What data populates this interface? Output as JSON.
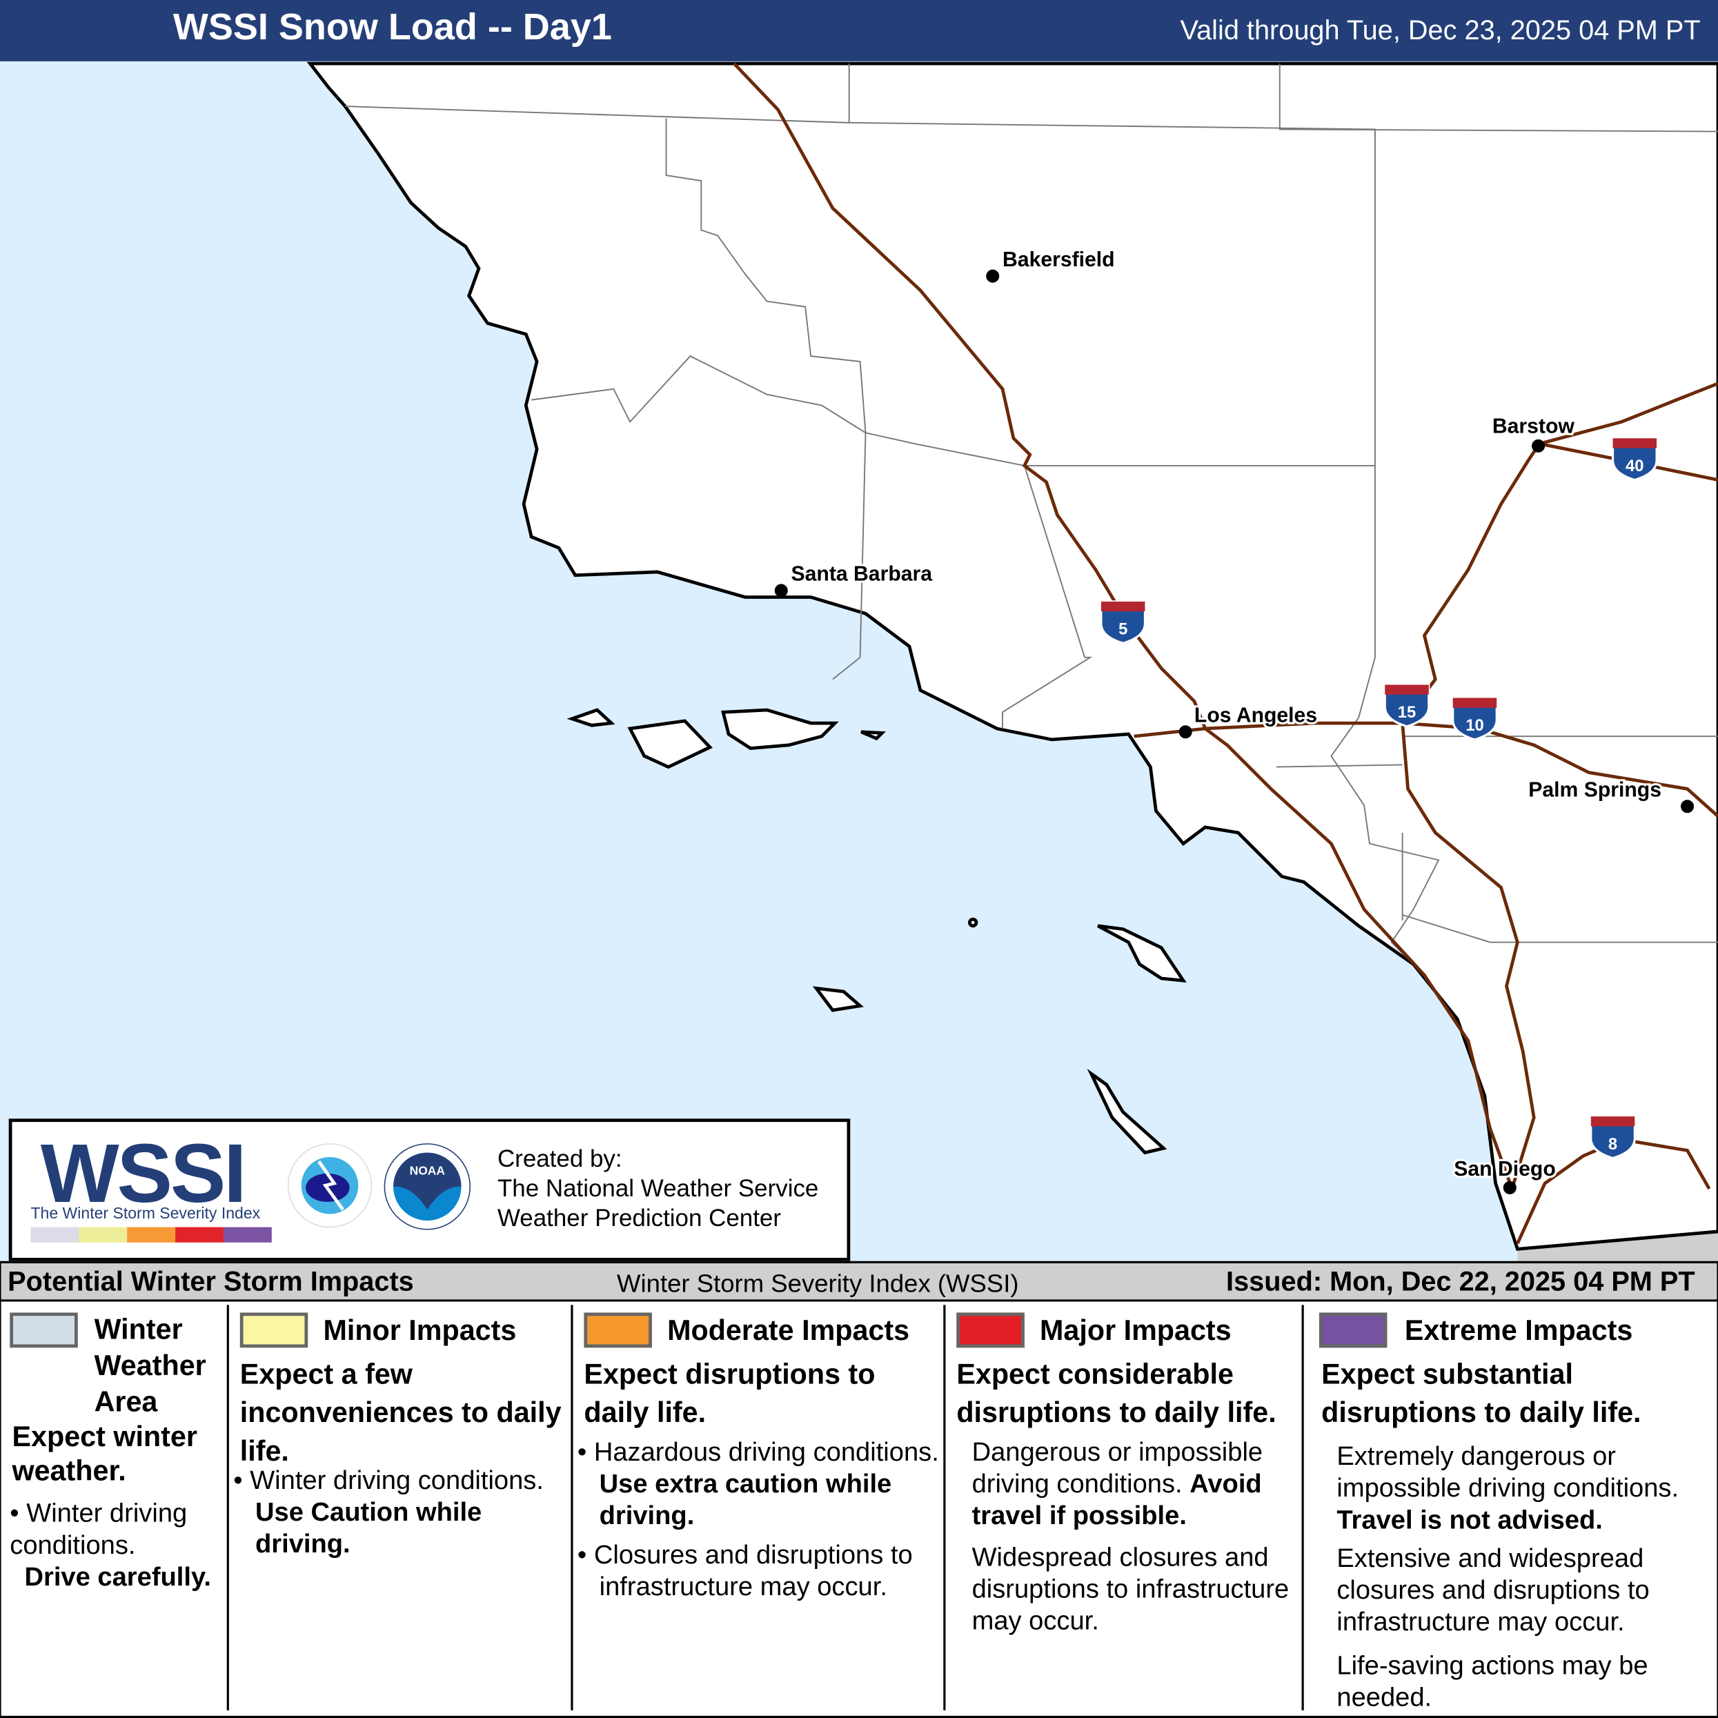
{
  "header": {
    "title": "WSSI Snow Load -- Day1",
    "valid": "Valid through Tue, Dec 23, 2025 04 PM PT"
  },
  "map": {
    "colors": {
      "ocean": "#dcefff",
      "land": "#ffffff",
      "highway": "#6b2a0a",
      "shield_blue": "#1e4f9a",
      "shield_red": "#b3262f"
    },
    "cities": [
      {
        "name": "Bakersfield"
      },
      {
        "name": "Santa Barbara"
      },
      {
        "name": "Los Angeles"
      },
      {
        "name": "Barstow"
      },
      {
        "name": "Palm Springs"
      },
      {
        "name": "San Diego"
      }
    ],
    "interstates": [
      "5",
      "15",
      "10",
      "40",
      "8"
    ]
  },
  "logo": {
    "wssi": "WSSI",
    "tm": "TM",
    "subtitle": "The Winter Storm Severity Index",
    "created_by": "Created by:",
    "org1": "The National Weather Service",
    "org2": "Weather Prediction Center",
    "nws_text": "NATIONAL WEATHER SERVICE",
    "noaa_text": "NOAA",
    "scale_colors": [
      "#dcdbe8",
      "#eeed9a",
      "#f79a35",
      "#e1232a",
      "#7b54a3"
    ]
  },
  "legend_bar": {
    "left": "Potential Winter Storm Impacts",
    "center": "Winter Storm Severity Index (WSSI)",
    "right": "Issued: Mon, Dec 22, 2025 04 PM PT"
  },
  "legend": [
    {
      "title": "Winter Weather Area",
      "color": "#d3dfe8",
      "lead": "Expect winter weather.",
      "b1": "Winter driving conditions.",
      "b1_bold": "Drive carefully."
    },
    {
      "title": "Minor Impacts",
      "color": "#faf6a2",
      "lead": "Expect a few inconveniences to daily life.",
      "b1": "Winter driving conditions.",
      "b1_bold": "Use Caution while driving."
    },
    {
      "title": "Moderate Impacts",
      "color": "#f7982f",
      "lead": "Expect disruptions to daily life.",
      "b1": "Hazardous driving conditions.",
      "b1_bold": "Use extra caution while driving.",
      "b2": "Closures and disruptions to infrastructure may occur."
    },
    {
      "title": "Major Impacts",
      "color": "#e21e26",
      "lead": "Expect considerable disruptions to daily life.",
      "b1": "Dangerous or impossible driving conditions.",
      "b1_bold": "Avoid travel if possible.",
      "b2": "Widespread closures and disruptions to infrastructure may occur."
    },
    {
      "title": "Extreme Impacts",
      "color": "#7752a0",
      "lead": "Expect substantial disruptions to daily life.",
      "b1": "Extremely dangerous or impossible driving conditions.",
      "b1_bold": "Travel is not advised.",
      "b2": "Extensive and widespread closures and disruptions to infrastructure may occur.",
      "b3": "Life-saving actions may be needed."
    }
  ]
}
